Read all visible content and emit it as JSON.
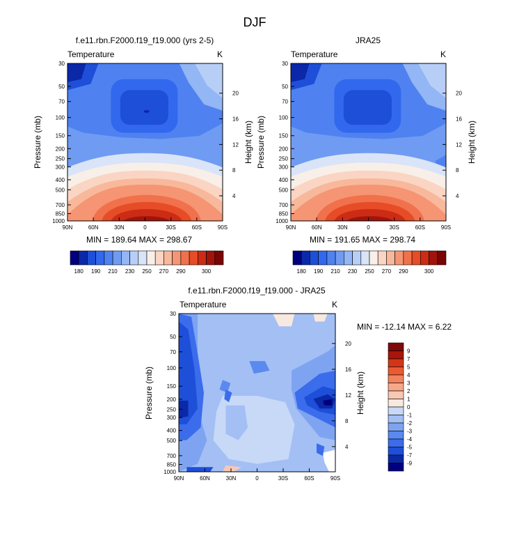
{
  "figure": {
    "title": "DJF",
    "colors": {
      "t_levels": [
        "#00007f",
        "#0b28a8",
        "#1e4fd8",
        "#3168ee",
        "#4f82f0",
        "#6f9bf2",
        "#93b6f4",
        "#b7cff7",
        "#d9e4f8",
        "#f8efe8",
        "#fad5c3",
        "#f8b89b",
        "#f59573",
        "#f0714b",
        "#e64c26",
        "#cc2b16",
        "#a0140b",
        "#7a0504"
      ],
      "d_levels": [
        "#00007f",
        "#0b28a8",
        "#1e4fd8",
        "#3b6cec",
        "#5a89ef",
        "#7ea4f1",
        "#a3bff4",
        "#c7d9f7",
        "#f7e8e0",
        "#f8c8b2",
        "#f6a888",
        "#f2835e",
        "#ea5b34",
        "#d43519",
        "#a8150a",
        "#80090a"
      ]
    }
  },
  "chart_data": [
    {
      "id": "model",
      "type": "contour",
      "title": "f.e11.rbn.F2000.f19_f19.000 (yrs 2-5)",
      "left_label": "Temperature",
      "right_label": "K",
      "xlabel": "",
      "ylabel": "Pressure (mb)",
      "ylabel_right": "Height (km)",
      "x_ticks": [
        "90N",
        "60N",
        "30N",
        "0",
        "30S",
        "60S",
        "90S"
      ],
      "x_tick_values": [
        90,
        60,
        30,
        0,
        -30,
        -60,
        -90
      ],
      "y_ticks": [
        "30",
        "50",
        "70",
        "100",
        "150",
        "200",
        "250",
        "300",
        "400",
        "500",
        "700",
        "850",
        "1000"
      ],
      "y_tick_values": [
        30,
        50,
        70,
        100,
        150,
        200,
        250,
        300,
        400,
        500,
        700,
        850,
        1000
      ],
      "height_ticks": [
        "20",
        "16",
        "12",
        "8",
        "4"
      ],
      "height_tick_values": [
        20,
        16,
        12,
        8,
        4
      ],
      "ylim": [
        1000,
        30
      ],
      "xlim": [
        90,
        -90
      ],
      "stats": "MIN = 189.64   MAX = 298.67",
      "min": 189.64,
      "max": 298.67
    },
    {
      "id": "obs",
      "type": "contour",
      "title": "JRA25",
      "left_label": "Temperature",
      "right_label": "K",
      "xlabel": "",
      "ylabel": "Pressure (mb)",
      "ylabel_right": "Height (km)",
      "x_ticks": [
        "90N",
        "60N",
        "30N",
        "0",
        "30S",
        "60S",
        "90S"
      ],
      "x_tick_values": [
        90,
        60,
        30,
        0,
        -30,
        -60,
        -90
      ],
      "y_ticks": [
        "30",
        "50",
        "70",
        "100",
        "150",
        "200",
        "250",
        "300",
        "400",
        "500",
        "700",
        "850",
        "1000"
      ],
      "y_tick_values": [
        30,
        50,
        70,
        100,
        150,
        200,
        250,
        300,
        400,
        500,
        700,
        850,
        1000
      ],
      "height_ticks": [
        "20",
        "16",
        "12",
        "8",
        "4"
      ],
      "height_tick_values": [
        20,
        16,
        12,
        8,
        4
      ],
      "ylim": [
        1000,
        30
      ],
      "xlim": [
        90,
        -90
      ],
      "stats": "MIN = 191.65   MAX = 298.74",
      "min": 191.65,
      "max": 298.74
    },
    {
      "id": "diff",
      "type": "contour",
      "title": "f.e11.rbn.F2000.f19_f19.000 - JRA25",
      "left_label": "Temperature",
      "right_label": "K",
      "xlabel": "",
      "ylabel": "Pressure (mb)",
      "ylabel_right": "Height (km)",
      "x_ticks": [
        "90N",
        "60N",
        "30N",
        "0",
        "30S",
        "60S",
        "90S"
      ],
      "x_tick_values": [
        90,
        60,
        30,
        0,
        -30,
        -60,
        -90
      ],
      "y_ticks": [
        "30",
        "50",
        "70",
        "100",
        "150",
        "200",
        "250",
        "300",
        "400",
        "500",
        "700",
        "850",
        "1000"
      ],
      "y_tick_values": [
        30,
        50,
        70,
        100,
        150,
        200,
        250,
        300,
        400,
        500,
        700,
        850,
        1000
      ],
      "height_ticks": [
        "20",
        "16",
        "12",
        "8",
        "4"
      ],
      "height_tick_values": [
        20,
        16,
        12,
        8,
        4
      ],
      "ylim": [
        1000,
        30
      ],
      "xlim": [
        90,
        -90
      ],
      "stats": "MIN = -12.14   MAX =   6.22",
      "min": -12.14,
      "max": 6.22
    }
  ],
  "colorbars": {
    "temperature": {
      "labels": [
        "180",
        "190",
        "210",
        "230",
        "250",
        "270",
        "290",
        "300"
      ]
    },
    "difference": {
      "labels": [
        "9",
        "7",
        "5",
        "4",
        "3",
        "2",
        "1",
        "0",
        "-1",
        "-2",
        "-3",
        "-4",
        "-5",
        "-7",
        "-9"
      ]
    }
  }
}
